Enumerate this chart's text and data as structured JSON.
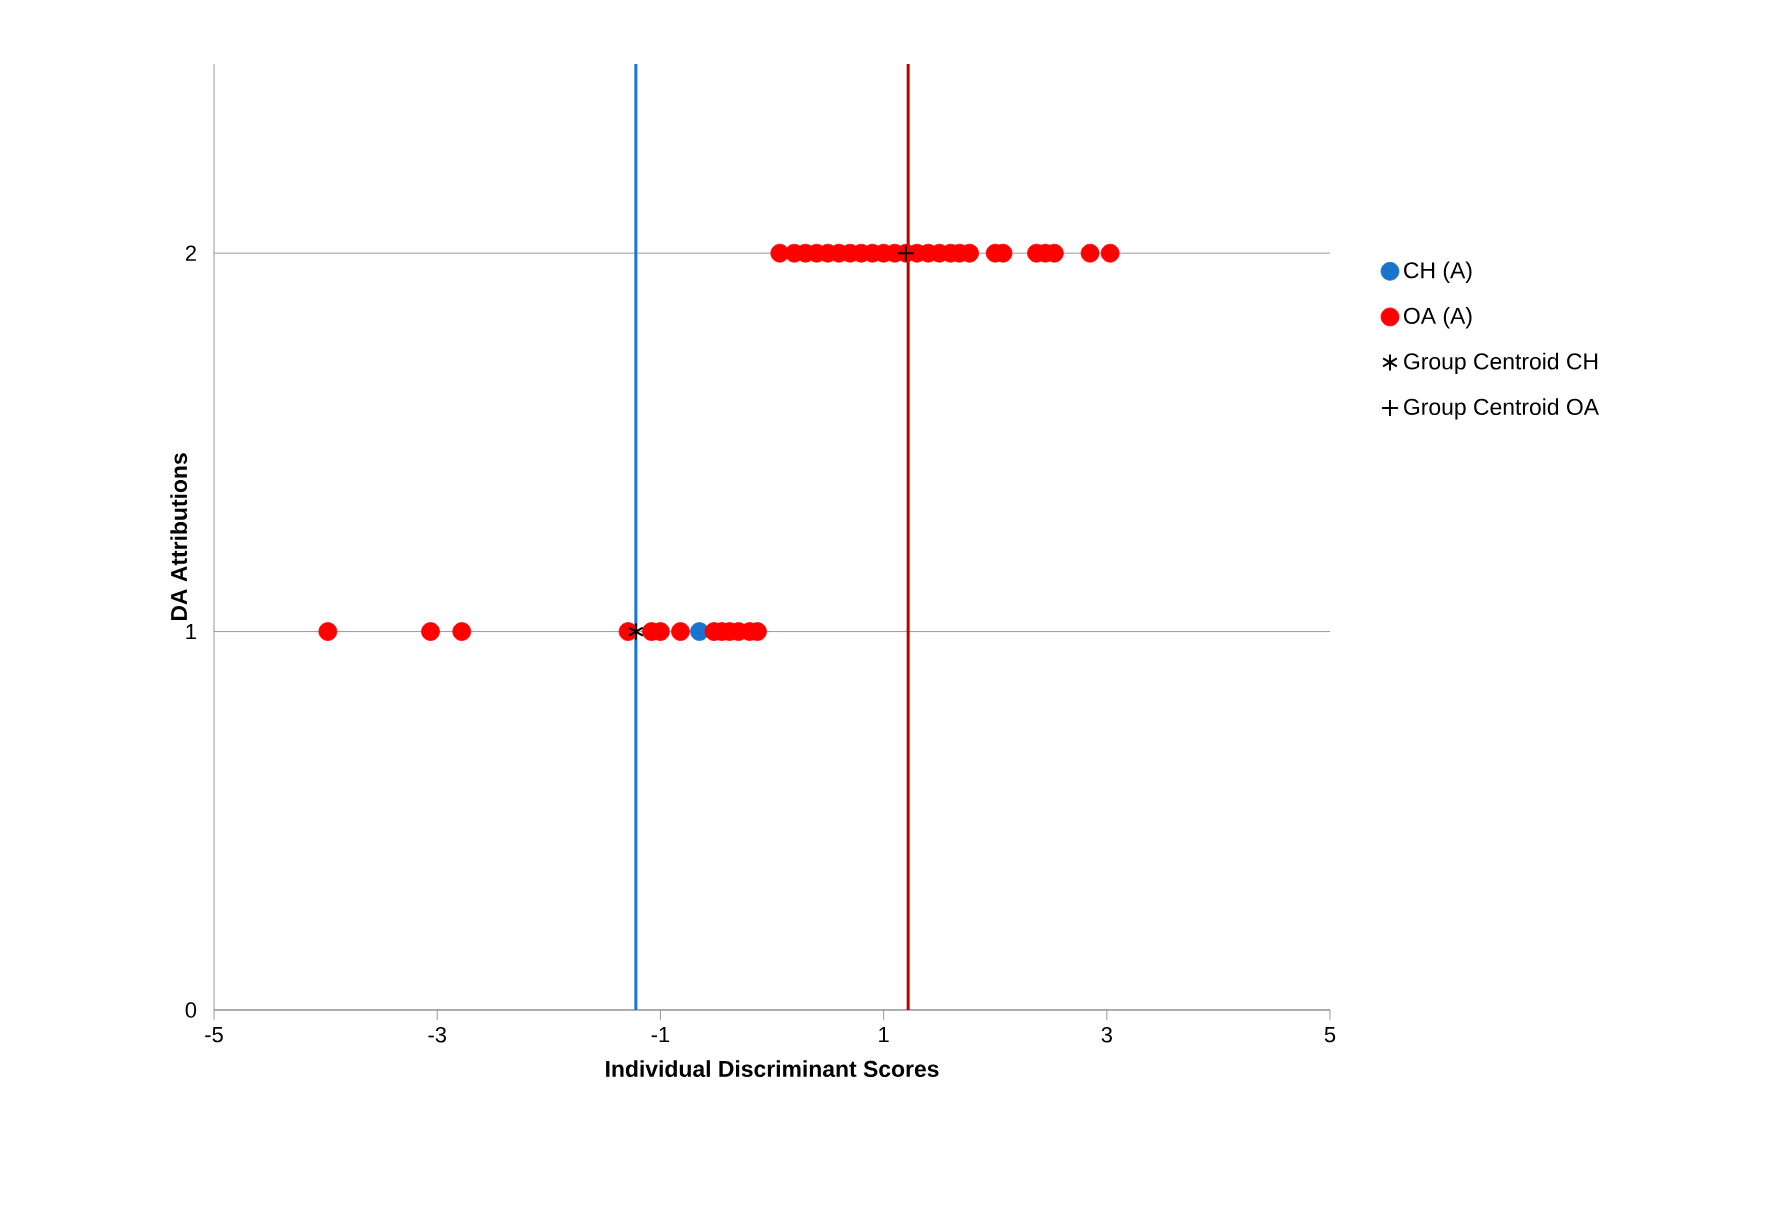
{
  "chart_data": {
    "type": "scatter",
    "xlabel": "Individual Discriminant Scores",
    "ylabel": "DA Attributions",
    "xlim": [
      -5,
      5
    ],
    "xticks": [
      -5,
      -3,
      -1,
      1,
      3,
      5
    ],
    "ylim": [
      0,
      2.5
    ],
    "yticks": [
      0,
      1,
      2
    ],
    "grid": "y",
    "legend": "right",
    "marker": "circle",
    "series": [
      {
        "name": "CH (A)",
        "color": "#1874cd",
        "x": [
          -0.65
        ],
        "values": [
          1
        ]
      },
      {
        "name": "OA (A)",
        "color": "#ff0000",
        "x": [
          -3.98,
          -3.06,
          -2.78,
          -1.29,
          -1.08,
          -1.0,
          -0.82,
          -0.52,
          -0.45,
          -0.38,
          -0.3,
          -0.2,
          -0.13,
          0.07,
          0.2,
          0.3,
          0.4,
          0.5,
          0.6,
          0.7,
          0.8,
          0.9,
          1.0,
          1.1,
          1.2,
          1.3,
          1.4,
          1.5,
          1.6,
          1.68,
          1.77,
          2.0,
          2.07,
          2.37,
          2.45,
          2.53,
          2.85,
          3.03
        ],
        "values": [
          1,
          1,
          1,
          1,
          1,
          1,
          1,
          1,
          1,
          1,
          1,
          1,
          1,
          2,
          2,
          2,
          2,
          2,
          2,
          2,
          2,
          2,
          2,
          2,
          2,
          2,
          2,
          2,
          2,
          2,
          2,
          2,
          2,
          2,
          2,
          2,
          2,
          2
        ]
      },
      {
        "name": "Group Centroid CH",
        "color": "#000000",
        "marker": "cross",
        "x": [
          -1.22
        ],
        "values": [
          1
        ]
      },
      {
        "name": "Group Centroid OA",
        "color": "#000000",
        "marker": "cross",
        "x": [
          1.2
        ],
        "values": [
          2
        ]
      }
    ],
    "ref_lines": [
      {
        "axis": "x",
        "value": -1.22,
        "color": "#1874cd"
      },
      {
        "axis": "x",
        "value": 1.22,
        "color": "#c00000"
      }
    ]
  }
}
